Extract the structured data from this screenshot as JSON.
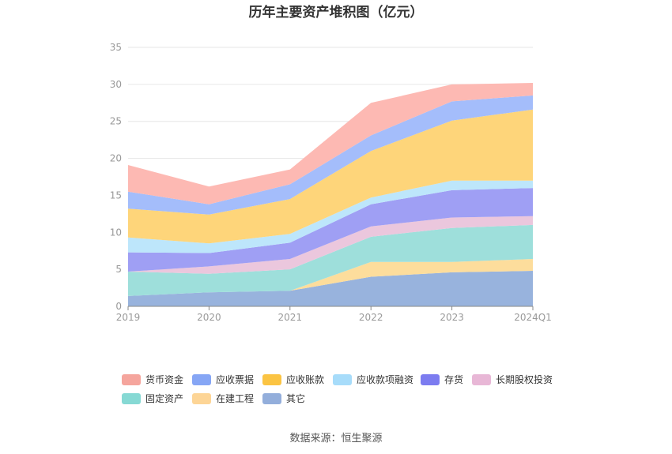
{
  "chart_data": {
    "type": "area",
    "stacked": true,
    "title": "历年主要资产堆积图（亿元）",
    "categories": [
      "2019",
      "2020",
      "2021",
      "2022",
      "2023",
      "2024Q1"
    ],
    "ylim": [
      0,
      35
    ],
    "yticks": [
      0,
      5,
      10,
      15,
      20,
      25,
      30,
      35
    ],
    "grid": true,
    "legend_position": "bottom",
    "series": [
      {
        "name": "其它",
        "color": "#98b3dd",
        "values": [
          1.4,
          1.9,
          2.1,
          4.0,
          4.6,
          4.8
        ]
      },
      {
        "name": "在建工程",
        "color": "#fddd9c",
        "values": [
          0.0,
          0.0,
          0.0,
          2.0,
          1.4,
          1.6
        ]
      },
      {
        "name": "固定资产",
        "color": "#9edfdb",
        "values": [
          3.3,
          2.5,
          2.9,
          3.4,
          4.6,
          4.6
        ]
      },
      {
        "name": "长期股权投资",
        "color": "#ebc7dd",
        "values": [
          0.0,
          1.0,
          1.4,
          1.4,
          1.4,
          1.2
        ]
      },
      {
        "name": "存货",
        "color": "#9f9ff4",
        "values": [
          2.6,
          1.8,
          2.2,
          3.0,
          3.7,
          3.8
        ]
      },
      {
        "name": "应收款项融资",
        "color": "#bde6fb",
        "values": [
          2.0,
          1.3,
          1.2,
          0.9,
          1.3,
          1.0
        ]
      },
      {
        "name": "应收账款",
        "color": "#fed57a",
        "values": [
          3.9,
          3.9,
          4.7,
          6.3,
          8.1,
          9.6
        ]
      },
      {
        "name": "应收票据",
        "color": "#a4bdfb",
        "values": [
          2.3,
          1.4,
          2.0,
          2.1,
          2.6,
          1.9
        ]
      },
      {
        "name": "货币资金",
        "color": "#fdb9b3",
        "values": [
          3.6,
          2.4,
          2.0,
          4.4,
          2.3,
          1.7
        ]
      }
    ],
    "legend": [
      {
        "name": "货币资金",
        "color": "#f5a59d"
      },
      {
        "name": "应收票据",
        "color": "#86a6f5"
      },
      {
        "name": "应收账款",
        "color": "#fbc443"
      },
      {
        "name": "应收款项融资",
        "color": "#a7dcfa"
      },
      {
        "name": "存货",
        "color": "#7c7cf0"
      },
      {
        "name": "长期股权投资",
        "color": "#e8b7d6"
      },
      {
        "name": "固定资产",
        "color": "#86d9d4"
      },
      {
        "name": "在建工程",
        "color": "#fdd596"
      },
      {
        "name": "其它",
        "color": "#93aedb"
      }
    ]
  },
  "source": "数据来源：恒生聚源"
}
